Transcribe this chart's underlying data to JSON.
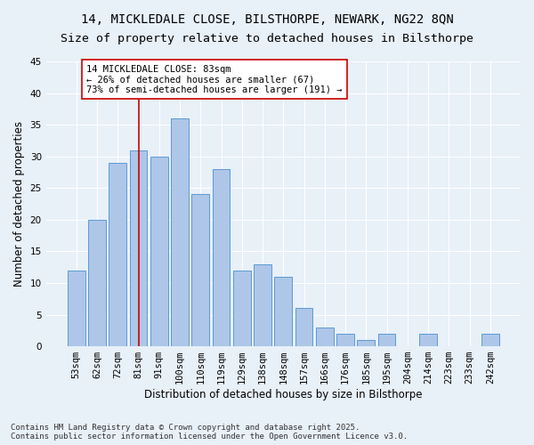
{
  "title1": "14, MICKLEDALE CLOSE, BILSTHORPE, NEWARK, NG22 8QN",
  "title2": "Size of property relative to detached houses in Bilsthorpe",
  "xlabel": "Distribution of detached houses by size in Bilsthorpe",
  "ylabel": "Number of detached properties",
  "categories": [
    "53sqm",
    "62sqm",
    "72sqm",
    "81sqm",
    "91sqm",
    "100sqm",
    "110sqm",
    "119sqm",
    "129sqm",
    "138sqm",
    "148sqm",
    "157sqm",
    "166sqm",
    "176sqm",
    "185sqm",
    "195sqm",
    "204sqm",
    "214sqm",
    "223sqm",
    "233sqm",
    "242sqm"
  ],
  "values": [
    12,
    20,
    29,
    31,
    30,
    36,
    24,
    28,
    12,
    13,
    11,
    6,
    3,
    2,
    1,
    2,
    0,
    2,
    0,
    0,
    2
  ],
  "bar_color": "#aec6e8",
  "bar_edge_color": "#5b9bd5",
  "vline_x_index": 3,
  "vline_color": "#cc0000",
  "annotation_text": "14 MICKLEDALE CLOSE: 83sqm\n← 26% of detached houses are smaller (67)\n73% of semi-detached houses are larger (191) →",
  "annotation_box_color": "#ffffff",
  "annotation_box_edge": "#cc0000",
  "ylim": [
    0,
    45
  ],
  "yticks": [
    0,
    5,
    10,
    15,
    20,
    25,
    30,
    35,
    40,
    45
  ],
  "footer": "Contains HM Land Registry data © Crown copyright and database right 2025.\nContains public sector information licensed under the Open Government Licence v3.0.",
  "background_color": "#e8f0f8",
  "grid_color": "#ffffff",
  "title_fontsize": 10,
  "axis_label_fontsize": 8.5,
  "tick_fontsize": 7.5,
  "annotation_fontsize": 7.5,
  "footer_fontsize": 6.5
}
